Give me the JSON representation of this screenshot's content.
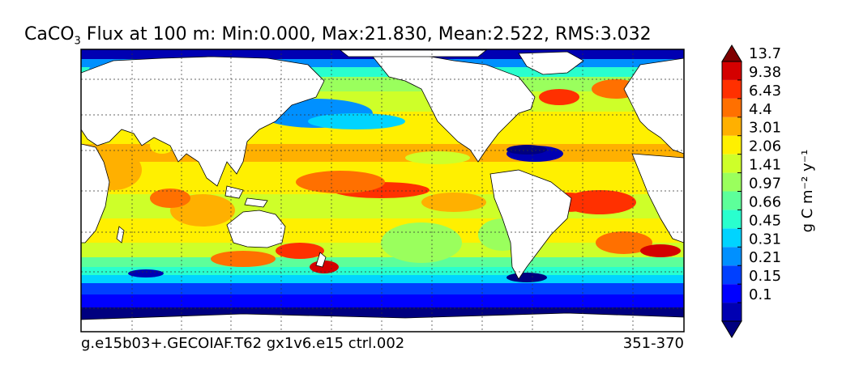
{
  "title": {
    "prefix": "CaCO",
    "subscript": "3",
    "rest": " Flux at 100 m: Min:0.000, Max:21.830, Mean:2.522, RMS:3.032"
  },
  "footer": {
    "left": "g.e15b03+.GECOIAF.T62 gx1v6.e15 ctrl.002",
    "right": "351-370"
  },
  "chart_data": {
    "type": "heatmap",
    "title": "CaCO3 Flux at 100 m: Min:0.000, Max:21.830, Mean:2.522, RMS:3.032",
    "stats": {
      "min": 0.0,
      "max": 21.83,
      "mean": 2.522,
      "rms": 3.032
    },
    "colorbar": {
      "label": "g C m⁻² y⁻¹",
      "ticks": [
        "0.1",
        "0.15",
        "0.21",
        "0.31",
        "0.45",
        "0.66",
        "0.97",
        "1.41",
        "2.06",
        "3.01",
        "4.4",
        "6.43",
        "9.38",
        "13.7"
      ],
      "colors": [
        "#00007f",
        "#0000b2",
        "#0000ff",
        "#0040ff",
        "#0090ff",
        "#00d4ff",
        "#29ffce",
        "#5dff9a",
        "#9aff5d",
        "#ceff29",
        "#fff000",
        "#ffb000",
        "#ff7000",
        "#ff3000",
        "#d40000",
        "#7f0000"
      ],
      "extend": "both"
    },
    "grid": true,
    "land_color": "#ffffff"
  }
}
